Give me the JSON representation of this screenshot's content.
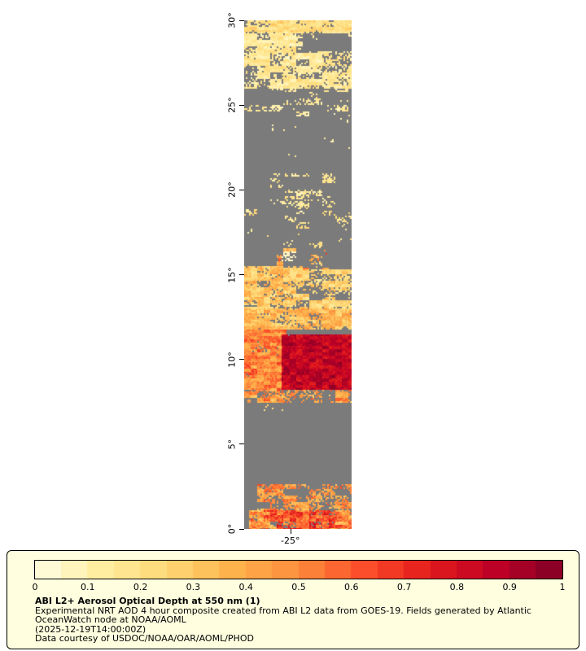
{
  "figure": {
    "y_axis": {
      "ticks": [
        {
          "label": "30°",
          "lat": 30
        },
        {
          "label": "25°",
          "lat": 25
        },
        {
          "label": "20°",
          "lat": 20
        },
        {
          "label": "15°",
          "lat": 15
        },
        {
          "label": "10°",
          "lat": 10
        },
        {
          "label": "5°",
          "lat": 5
        },
        {
          "label": "0°",
          "lat": 0
        }
      ]
    },
    "x_axis": {
      "tick_label": "-25°",
      "tick_frac": 0.43
    }
  },
  "legend": {
    "background": "#ffffe0",
    "border_color": "#000000",
    "title": "ABI L2+ Aerosol Optical Depth at 550 nm (1)",
    "caption_lines": [
      "Experimental NRT AOD 4 hour composite created from ABI L2 data from GOES-19. Fields generated by Atlantic",
      "OceanWatch node at NOAA/AOML",
      "(2025-12-19T14:00:00Z)",
      "Data courtesy of USDOC/NOAA/OAR/AOML/PHOD"
    ]
  },
  "chart_data": {
    "type": "heatmap",
    "title": "ABI L2+ Aerosol Optical Depth at 550 nm (1)",
    "variable": "Aerosol Optical Depth (AOD) at 550 nm",
    "colorbar": {
      "min": 0,
      "max": 1,
      "segments": 20,
      "tick_labels": [
        "0",
        "0.1",
        "0.2",
        "0.3",
        "0.4",
        "0.5",
        "0.6",
        "0.7",
        "0.8",
        "0.9",
        "1"
      ],
      "colors": [
        "#ffffe5",
        "#ffeda0",
        "#fed976",
        "#feb24c",
        "#fd8d3c",
        "#fc4e2a",
        "#e31a1c",
        "#bd0026",
        "#800026"
      ]
    },
    "map": {
      "lat_min": 0,
      "lat_max": 30,
      "lon_tick_label": "-25°",
      "no_data_color": "#7b7b7b",
      "regions": [
        {
          "lat": [
            26.0,
            30.0
          ],
          "x": [
            0.0,
            1.0
          ],
          "coverage": 0.62,
          "aod": 0.16,
          "spread": 0.12
        },
        {
          "lat": [
            29.3,
            30.0
          ],
          "x": [
            0.0,
            1.0
          ],
          "coverage": 0.85,
          "aod": 0.22,
          "spread": 0.12
        },
        {
          "lat": [
            28.2,
            29.2
          ],
          "x": [
            0.55,
            1.0
          ],
          "coverage": 0.15,
          "aod": 0.15,
          "spread": 0.08
        },
        {
          "lat": [
            24.3,
            26.0
          ],
          "x": [
            0.0,
            1.0
          ],
          "coverage": 0.3,
          "aod": 0.14,
          "spread": 0.08
        },
        {
          "lat": [
            21.0,
            24.3
          ],
          "x": [
            0.0,
            1.0
          ],
          "coverage": 0.06,
          "aod": 0.12,
          "spread": 0.06
        },
        {
          "lat": [
            19.0,
            21.0
          ],
          "x": [
            0.25,
            0.85
          ],
          "coverage": 0.32,
          "aod": 0.15,
          "spread": 0.1
        },
        {
          "lat": [
            16.5,
            19.0
          ],
          "x": [
            0.0,
            1.0
          ],
          "coverage": 0.2,
          "aod": 0.18,
          "spread": 0.12
        },
        {
          "lat": [
            15.3,
            16.6
          ],
          "x": [
            0.3,
            0.8
          ],
          "coverage": 0.45,
          "aod": 0.4,
          "spread": 0.3
        },
        {
          "lat": [
            15.8,
            16.4
          ],
          "x": [
            0.35,
            0.55
          ],
          "coverage": 0.3,
          "aod": 0.05,
          "spread": 0.03
        },
        {
          "lat": [
            13.0,
            15.3
          ],
          "x": [
            0.0,
            1.0
          ],
          "coverage": 0.55,
          "aod": 0.25,
          "spread": 0.15
        },
        {
          "lat": [
            13.2,
            15.5
          ],
          "x": [
            0.0,
            0.55
          ],
          "coverage": 0.7,
          "aod": 0.3,
          "spread": 0.18
        },
        {
          "lat": [
            11.8,
            13.0
          ],
          "x": [
            0.0,
            1.0
          ],
          "coverage": 0.8,
          "aod": 0.35,
          "spread": 0.18
        },
        {
          "lat": [
            8.0,
            11.8
          ],
          "x": [
            0.0,
            0.4
          ],
          "coverage": 0.92,
          "aod": 0.5,
          "spread": 0.2
        },
        {
          "lat": [
            8.2,
            11.5
          ],
          "x": [
            0.35,
            1.0
          ],
          "coverage": 0.97,
          "aod": 0.85,
          "spread": 0.15
        },
        {
          "lat": [
            7.4,
            8.2
          ],
          "x": [
            0.0,
            1.0
          ],
          "coverage": 0.55,
          "aod": 0.45,
          "spread": 0.2
        },
        {
          "lat": [
            2.6,
            7.4
          ],
          "x": [
            0.0,
            1.0
          ],
          "coverage": 0.025,
          "aod": 0.2,
          "spread": 0.1
        },
        {
          "lat": [
            1.1,
            2.6
          ],
          "x": [
            0.12,
            1.0
          ],
          "coverage": 0.5,
          "aod": 0.45,
          "spread": 0.2
        },
        {
          "lat": [
            0.0,
            1.1
          ],
          "x": [
            0.05,
            1.0
          ],
          "coverage": 0.75,
          "aod": 0.5,
          "spread": 0.28
        },
        {
          "lat": [
            0.0,
            1.1
          ],
          "x": [
            0.3,
            0.8
          ],
          "coverage": 0.85,
          "aod": 0.6,
          "spread": 0.25
        }
      ]
    }
  }
}
